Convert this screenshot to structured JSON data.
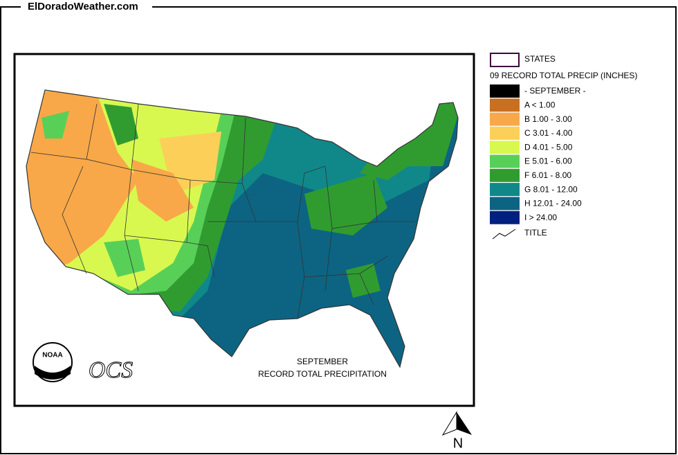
{
  "header": {
    "site": "ElDoradoWeather.com"
  },
  "map": {
    "title_lines": [
      "SEPTEMBER",
      "RECORD TOTAL PRECIPITATION"
    ],
    "logo_text": "NOAA",
    "agency_text": "OCS"
  },
  "legend": {
    "states_label": "STATES",
    "heading": "09 RECORD TOTAL PRECIP (INCHES)",
    "items": [
      {
        "label": "- SEPTEMBER -",
        "color": "#000000"
      },
      {
        "label": "A < 1.00",
        "color": "#c87022"
      },
      {
        "label": "B 1.00 - 3.00",
        "color": "#f8a848"
      },
      {
        "label": "C 3.01 - 4.00",
        "color": "#fcd058"
      },
      {
        "label": "D 4.01 - 5.00",
        "color": "#d8f850"
      },
      {
        "label": "E 5.01 - 6.00",
        "color": "#58d058"
      },
      {
        "label": "F 6.01 - 8.00",
        "color": "#309c30"
      },
      {
        "label": "G 8.01 - 12.00",
        "color": "#10888a"
      },
      {
        "label": "H 12.01 - 24.00",
        "color": "#0c6482"
      },
      {
        "label": "I > 24.00",
        "color": "#002080"
      }
    ],
    "title_label": "TITLE"
  },
  "compass": {
    "label": "N"
  }
}
